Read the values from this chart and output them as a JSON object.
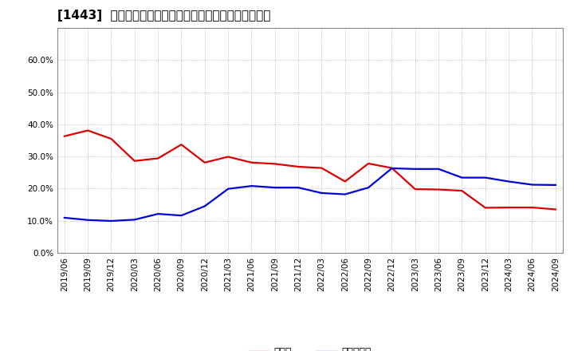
{
  "title": "[1443]  現預金、有利子負債の総資産に対する比率の推移",
  "legend_cash": "現預金",
  "legend_debt": "有利子負債",
  "x_labels": [
    "2019/06",
    "2019/09",
    "2019/12",
    "2020/03",
    "2020/06",
    "2020/09",
    "2020/12",
    "2021/03",
    "2021/06",
    "2021/09",
    "2021/12",
    "2022/03",
    "2022/06",
    "2022/09",
    "2022/12",
    "2023/03",
    "2023/06",
    "2023/09",
    "2023/12",
    "2024/03",
    "2024/06",
    "2024/09"
  ],
  "cash": [
    0.363,
    0.381,
    0.355,
    0.286,
    0.294,
    0.337,
    0.281,
    0.299,
    0.281,
    0.277,
    0.268,
    0.264,
    0.222,
    0.278,
    0.264,
    0.198,
    0.197,
    0.193,
    0.14,
    0.141,
    0.141,
    0.135
  ],
  "debt": [
    0.109,
    0.102,
    0.099,
    0.103,
    0.121,
    0.116,
    0.145,
    0.199,
    0.208,
    0.203,
    0.203,
    0.186,
    0.182,
    0.203,
    0.263,
    0.261,
    0.261,
    0.234,
    0.234,
    0.222,
    0.212,
    0.211
  ],
  "cash_color": "#dd0000",
  "debt_color": "#0000dd",
  "ylim": [
    0.0,
    0.7
  ],
  "yticks": [
    0.0,
    0.1,
    0.2,
    0.3,
    0.4,
    0.5,
    0.6
  ],
  "grid_color": "#aaaaaa",
  "bg_color": "#ffffff",
  "title_fontsize": 11,
  "line_width": 1.6,
  "tick_fontsize": 7.5,
  "legend_fontsize": 9
}
